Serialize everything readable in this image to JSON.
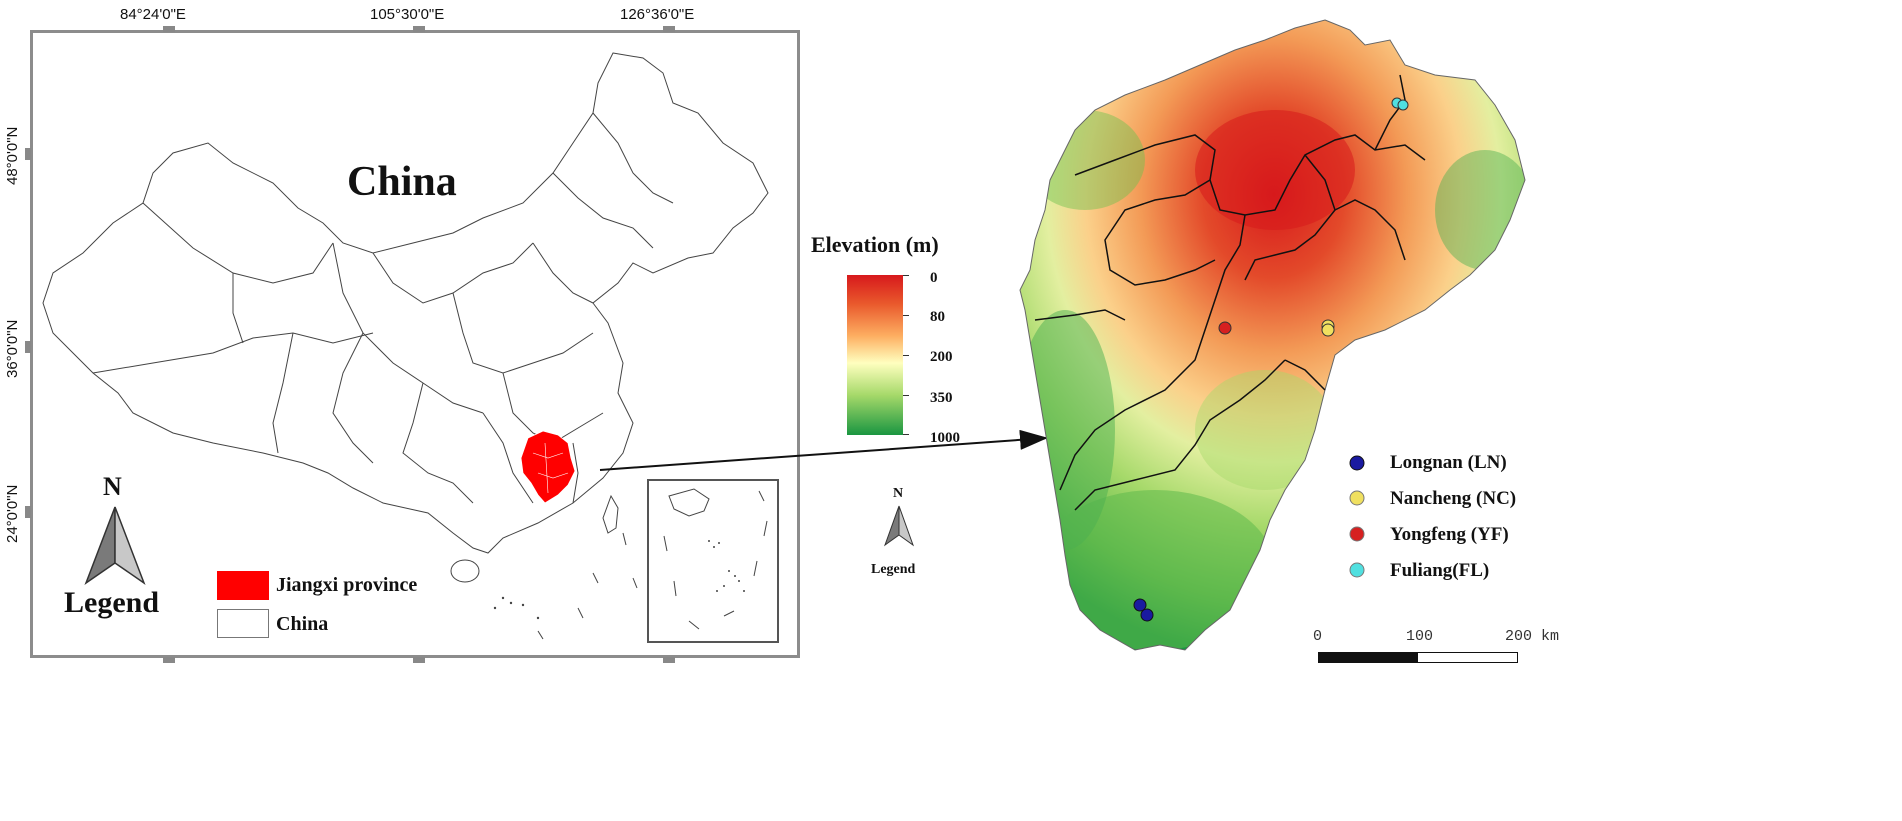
{
  "left_map": {
    "title": "China",
    "top_coords": [
      "84°24'0\"E",
      "105°30'0\"E",
      "126°36'0\"E"
    ],
    "left_coords": [
      "48°0'0\"N",
      "36°0'0\"N",
      "24°0'0\"N"
    ],
    "north_label": "N",
    "legend_title": "Legend",
    "legend_items": [
      {
        "label": "Jiangxi province",
        "color": "#ff0000"
      },
      {
        "label": "China",
        "color": "#ffffff"
      }
    ]
  },
  "elevation_legend": {
    "title": "Elevation (m)",
    "labels": [
      "0",
      "80",
      "200",
      "350",
      "1000"
    ],
    "colors": [
      "#d7191c",
      "#fdae61",
      "#ffffbf",
      "#a6d96a",
      "#1a9641"
    ]
  },
  "mid_compass": {
    "north_label": "N",
    "legend_label": "Legend"
  },
  "right_map": {
    "sites": [
      {
        "label": "Longnan (LN)",
        "color": "#1a1aa0"
      },
      {
        "label": "Nancheng (NC)",
        "color": "#f0e060"
      },
      {
        "label": "Yongfeng (YF)",
        "color": "#d62020"
      },
      {
        "label": "Fuliang(FL)",
        "color": "#50e0e0"
      }
    ],
    "scalebar": {
      "labels": [
        "0",
        "100",
        "200 km"
      ]
    }
  }
}
